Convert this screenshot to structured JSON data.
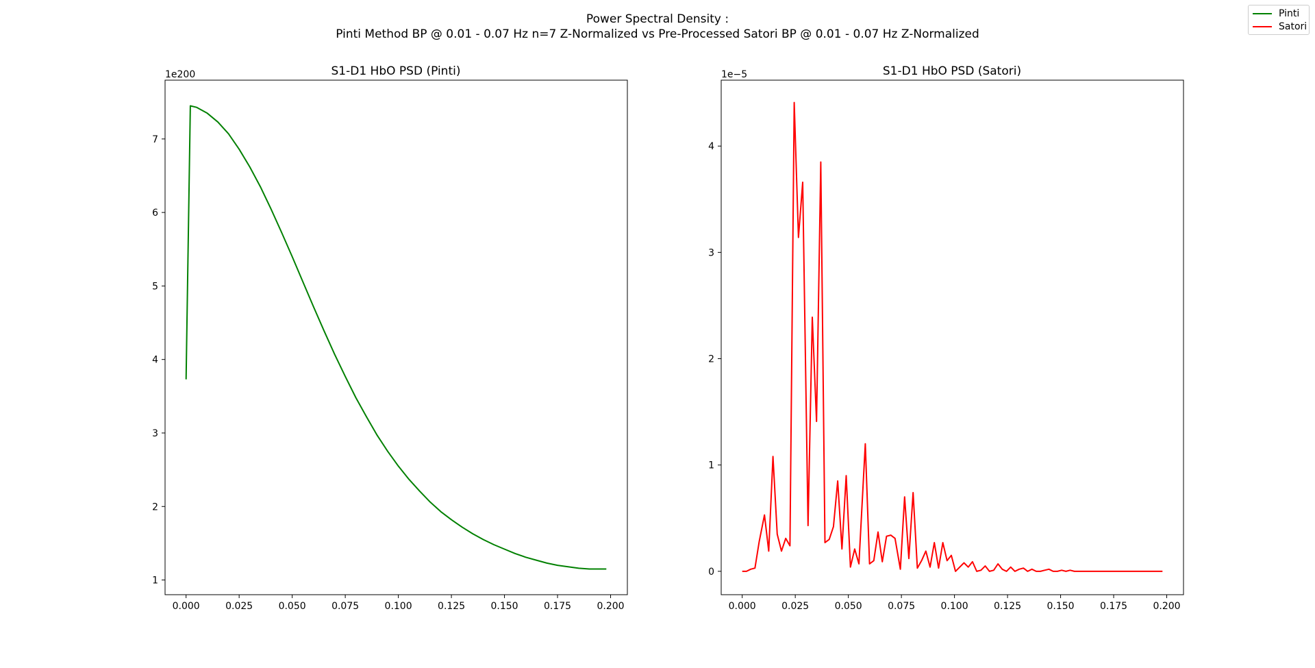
{
  "figure": {
    "suptitle_line1": "Power Spectral Density :",
    "suptitle_line2": "Pinti Method BP @ 0.01 - 0.07 Hz n=7 Z-Normalized vs Pre-Processed Satori BP @ 0.01 - 0.07 Hz Z-Normalized"
  },
  "legend": {
    "placement": "top-right",
    "items": [
      {
        "label": "Pinti",
        "color": "#008000"
      },
      {
        "label": "Satori",
        "color": "#ff0000"
      }
    ]
  },
  "chart_data": [
    {
      "type": "line",
      "title": "S1-D1 HbO PSD (Pinti)",
      "xlabel": "",
      "ylabel": "",
      "offset_text": "1e200",
      "color": "#008000",
      "xlim": [
        -0.0099,
        0.2079
      ],
      "ylim": [
        0.8,
        7.8
      ],
      "xticks": [
        "0.000",
        "0.025",
        "0.050",
        "0.075",
        "0.100",
        "0.125",
        "0.150",
        "0.175",
        "0.200"
      ],
      "xtick_values": [
        0,
        0.025,
        0.05,
        0.075,
        0.1,
        0.125,
        0.15,
        0.175,
        0.2
      ],
      "yticks": [
        "1",
        "2",
        "3",
        "4",
        "5",
        "6",
        "7"
      ],
      "ytick_values": [
        1,
        2,
        3,
        4,
        5,
        6,
        7
      ],
      "series": [
        {
          "name": "Pinti",
          "x": [
            0,
            0.002,
            0.005,
            0.01,
            0.015,
            0.02,
            0.025,
            0.03,
            0.035,
            0.04,
            0.045,
            0.05,
            0.055,
            0.06,
            0.065,
            0.07,
            0.075,
            0.08,
            0.085,
            0.09,
            0.095,
            0.1,
            0.105,
            0.11,
            0.115,
            0.12,
            0.125,
            0.13,
            0.135,
            0.14,
            0.145,
            0.15,
            0.155,
            0.16,
            0.165,
            0.17,
            0.175,
            0.18,
            0.185,
            0.19,
            0.195,
            0.198
          ],
          "y": [
            3.73,
            7.45,
            7.43,
            7.35,
            7.23,
            7.07,
            6.86,
            6.62,
            6.35,
            6.05,
            5.73,
            5.4,
            5.06,
            4.72,
            4.39,
            4.07,
            3.77,
            3.48,
            3.22,
            2.97,
            2.75,
            2.55,
            2.37,
            2.21,
            2.06,
            1.93,
            1.82,
            1.72,
            1.63,
            1.55,
            1.48,
            1.42,
            1.36,
            1.31,
            1.27,
            1.23,
            1.2,
            1.18,
            1.16,
            1.15,
            1.15,
            1.15
          ]
        }
      ]
    },
    {
      "type": "line",
      "title": "S1-D1 HbO PSD (Satori)",
      "xlabel": "",
      "ylabel": "",
      "offset_text": "1e−5",
      "color": "#ff0000",
      "xlim": [
        -0.0099,
        0.2079
      ],
      "ylim": [
        -0.22,
        4.62
      ],
      "xticks": [
        "0.000",
        "0.025",
        "0.050",
        "0.075",
        "0.100",
        "0.125",
        "0.150",
        "0.175",
        "0.200"
      ],
      "xtick_values": [
        0,
        0.025,
        0.05,
        0.075,
        0.1,
        0.125,
        0.15,
        0.175,
        0.2
      ],
      "yticks": [
        "0",
        "1",
        "2",
        "3",
        "4"
      ],
      "ytick_values": [
        0,
        1,
        2,
        3,
        4
      ],
      "series": [
        {
          "name": "Satori",
          "x": [
            0,
            0.002,
            0.004,
            0.006,
            0.008,
            0.0105,
            0.0125,
            0.0145,
            0.0165,
            0.0185,
            0.0205,
            0.0225,
            0.0245,
            0.0265,
            0.0285,
            0.031,
            0.033,
            0.035,
            0.037,
            0.039,
            0.041,
            0.043,
            0.045,
            0.047,
            0.049,
            0.051,
            0.053,
            0.055,
            0.058,
            0.06,
            0.062,
            0.064,
            0.066,
            0.068,
            0.07,
            0.072,
            0.0745,
            0.0765,
            0.0785,
            0.0805,
            0.0825,
            0.0845,
            0.0865,
            0.0885,
            0.0905,
            0.0925,
            0.0945,
            0.0965,
            0.0985,
            0.1005,
            0.1025,
            0.1045,
            0.1065,
            0.1085,
            0.1105,
            0.1125,
            0.1145,
            0.1165,
            0.1185,
            0.1205,
            0.1225,
            0.1245,
            0.1265,
            0.1285,
            0.1305,
            0.1325,
            0.1345,
            0.1365,
            0.1385,
            0.1405,
            0.1425,
            0.1445,
            0.1465,
            0.1485,
            0.1505,
            0.1525,
            0.1545,
            0.1565,
            0.16,
            0.165,
            0.17,
            0.175,
            0.18,
            0.185,
            0.19,
            0.198
          ],
          "y": [
            0.0,
            0.0,
            0.02,
            0.03,
            0.28,
            0.53,
            0.19,
            1.08,
            0.35,
            0.19,
            0.31,
            0.24,
            4.41,
            3.14,
            3.66,
            0.43,
            2.39,
            1.41,
            3.85,
            0.27,
            0.3,
            0.42,
            0.85,
            0.21,
            0.9,
            0.04,
            0.21,
            0.07,
            1.2,
            0.07,
            0.1,
            0.37,
            0.09,
            0.33,
            0.34,
            0.31,
            0.02,
            0.7,
            0.12,
            0.74,
            0.03,
            0.1,
            0.19,
            0.04,
            0.27,
            0.03,
            0.27,
            0.1,
            0.15,
            0.0,
            0.04,
            0.08,
            0.04,
            0.09,
            0.0,
            0.01,
            0.05,
            0.0,
            0.01,
            0.07,
            0.02,
            0.0,
            0.04,
            0.0,
            0.02,
            0.03,
            0.0,
            0.02,
            0.0,
            0.0,
            0.01,
            0.02,
            0.0,
            0.0,
            0.01,
            0.0,
            0.01,
            0.0,
            0.0,
            0.0,
            0.0,
            0.0,
            0.0,
            0.0,
            0.0,
            0.0
          ]
        }
      ]
    }
  ]
}
